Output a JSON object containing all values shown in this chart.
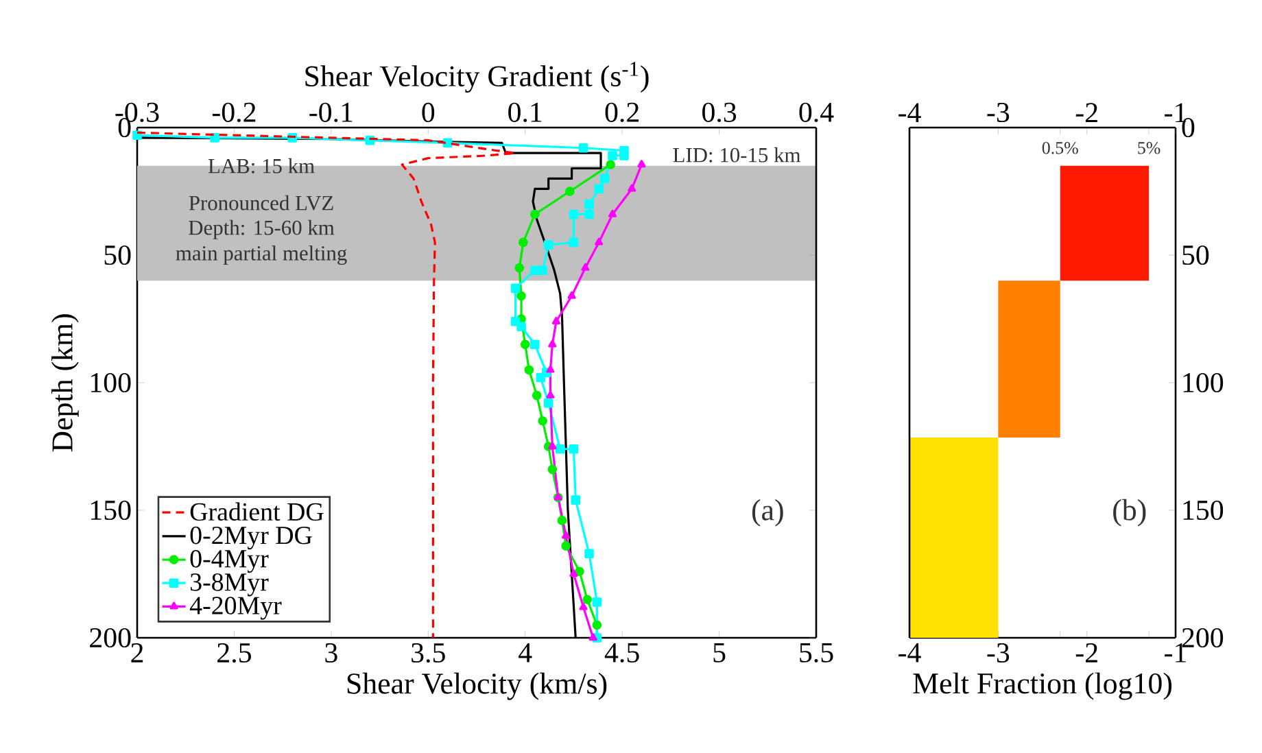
{
  "chart_data": [
    {
      "type": "line",
      "xlabel": "Shear Velocity (km/s)",
      "ylabel": "Depth (km)",
      "x2label": "Shear Velocity Gradient (s$^{-1}$)",
      "xlim": [
        2,
        5.5
      ],
      "xticks": [
        2,
        2.5,
        3,
        3.5,
        4,
        4.5,
        5,
        5.5
      ],
      "x2lim": [
        -0.3,
        0.4
      ],
      "x2ticks": [
        -0.3,
        -0.2,
        -0.1,
        0,
        0.1,
        0.2,
        0.3,
        0.4
      ],
      "ylim": [
        200,
        0
      ],
      "yticks": [
        0,
        50,
        100,
        150,
        200
      ],
      "legend": "bottom left",
      "bands": [
        {
          "axis": "y",
          "from": 15,
          "to": 60,
          "color": "#c0c0c0"
        }
      ],
      "annotations": [
        "LAB: 15 km",
        "Pronounced  LVZ",
        "Depth: 15-60 km",
        "main partial melting",
        "LID: 10-15 km",
        "(a)"
      ],
      "series": [
        {
          "name": "Gradient DG",
          "color": "#ff0000",
          "axis": "x2",
          "line_style": "dashed",
          "marker": "none",
          "x": [
            -0.3,
            0,
            0.07,
            0.09,
            0.06,
            0,
            -0.027,
            -0.015,
            -0.007,
            0.003,
            0.007,
            0.006,
            0.005,
            0.005
          ],
          "values": [
            2,
            5,
            9,
            10,
            11,
            12,
            14.5,
            20,
            29,
            38,
            45,
            60,
            100,
            200
          ]
        },
        {
          "name": "0-2Myr DG",
          "color": "#000000",
          "line_style": "solid",
          "marker": "none",
          "x": [
            2,
            3,
            3.5,
            3.88,
            3.9,
            4.39,
            4.39,
            4.24,
            4.24,
            4.12,
            4.12,
            4.05,
            4.04,
            4.06,
            4.11,
            4.15,
            4.18,
            4.19,
            4.2,
            4.22,
            4.26
          ],
          "values": [
            4,
            4.5,
            5.5,
            6,
            10,
            10,
            16,
            16,
            20,
            20,
            24,
            24,
            29,
            36,
            47,
            56,
            65,
            74,
            100,
            150,
            200
          ]
        },
        {
          "name": "0-4Myr",
          "color": "#00ee00",
          "line_style": "solid",
          "marker": "circle",
          "x": [
            4.44,
            4.23,
            4.05,
            3.99,
            3.97,
            3.98,
            3.98,
            4,
            4.02,
            4.06,
            4.09,
            4.12,
            4.14,
            4.17,
            4.19,
            4.21,
            4.28,
            4.32,
            4.37
          ],
          "values": [
            14.5,
            25,
            34,
            45,
            55,
            66,
            75,
            85,
            95,
            105,
            115,
            125,
            134,
            145,
            154,
            164,
            174,
            185,
            195
          ]
        },
        {
          "name": "3-8Myr",
          "color": "#00ffff",
          "line_style": "solid",
          "marker": "square",
          "x": [
            2,
            2.4,
            2.8,
            3.2,
            3.6,
            4.3,
            4.51,
            4.51,
            4.45,
            4.41,
            4.38,
            4.33,
            4.33,
            4.25,
            4.25,
            4.12,
            4.09,
            4.05,
            3.95,
            3.95,
            3.98,
            4.05,
            4.11,
            4.08,
            4.12,
            4.18,
            4.25,
            4.26,
            4.33,
            4.37,
            4.37
          ],
          "values": [
            3,
            4,
            4,
            5,
            6,
            8,
            9,
            11,
            11,
            20,
            24,
            30,
            34,
            34,
            45,
            46,
            56,
            56,
            63,
            76,
            78,
            85,
            96,
            98,
            108,
            126,
            126,
            146,
            167,
            186,
            200
          ]
        },
        {
          "name": "4-20Myr",
          "color": "#ff00ff",
          "line_style": "solid",
          "marker": "triangle",
          "x": [
            4.6,
            4.55,
            4.45,
            4.38,
            4.31,
            4.24,
            4.16,
            4.14,
            4.13,
            4.13,
            4.14,
            4.17,
            4.21,
            4.25,
            4.3,
            4.35
          ],
          "values": [
            14.5,
            24,
            34,
            45,
            55,
            66,
            76,
            85,
            95,
            105,
            125,
            145,
            160,
            175,
            188,
            200
          ]
        }
      ]
    },
    {
      "type": "bar",
      "orientation": "horizontal",
      "xlabel": "Melt Fraction (log10)",
      "xlim": [
        -4,
        -1
      ],
      "xticks": [
        -4,
        -3,
        {
          "value": -2.301,
          "label": null
        },
        -2,
        {
          "value": -1.301,
          "label": null
        },
        -1
      ],
      "x2lim": [
        -4,
        -1
      ],
      "x2ticks": [
        -4,
        -3,
        {
          "value": -2.301,
          "label": null
        },
        -2,
        {
          "value": -1.301,
          "label": null
        },
        -1
      ],
      "ylim": [
        200,
        0
      ],
      "yticks": [
        0,
        50,
        100,
        150,
        200
      ],
      "annotations": [
        "0.5%",
        "5%",
        "(b)"
      ],
      "x": [
        37.5,
        90.75,
        160.75
      ],
      "base": [
        -2.301,
        -3,
        -4
      ],
      "values": [
        1,
        0.699,
        1
      ],
      "colors": [
        "#ff1a00",
        "#ff7f00",
        "#ffe100"
      ]
    }
  ]
}
